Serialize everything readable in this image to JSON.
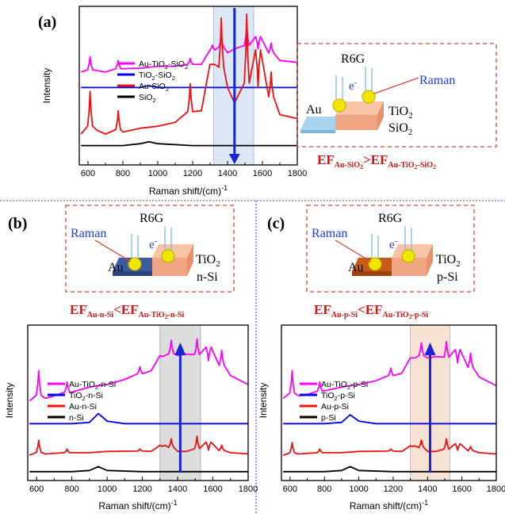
{
  "divider_color": "#3b4cc8",
  "colors": {
    "magenta": "#ff00ff",
    "blue": "#0000ee",
    "red": "#ee1111",
    "black": "#000000",
    "arrow": "#1a23d6",
    "efred": "#d11818",
    "boxred": "#d9433b",
    "diag_blue": "#1f3cdd"
  },
  "panels": [
    {
      "label": "(a)",
      "ylabel": "Intensity",
      "xlabel": "Raman shift/(cm)",
      "xlabel_sup": "-1",
      "xticks": [
        "600",
        "800",
        "1000",
        "1200",
        "1400",
        "1600",
        "1800"
      ],
      "legend": [
        {
          "pre": "Au-TiO",
          "sub": "2",
          "post": "-SiO",
          "sub2": "2",
          "color": "#ff00ff"
        },
        {
          "pre": "TiO",
          "sub": "2",
          "post": "-SiO",
          "sub2": "2",
          "color": "#0000ee"
        },
        {
          "pre": "Au-SiO",
          "sub": "2",
          "post": "",
          "sub2": "",
          "color": "#ee1111"
        },
        {
          "pre": "SiO",
          "sub": "2",
          "post": "",
          "sub2": "",
          "color": "#000000"
        }
      ],
      "diagram": {
        "r6g": "R6G",
        "e": "e",
        "raman": "Raman",
        "au": "Au",
        "oxide": "TiO",
        "oxide_sub": "2",
        "substrate": "SiO",
        "substrate_sub": "2"
      },
      "ef": {
        "left_sub": "Au-SiO",
        "left_sub2": "2",
        "op": ">",
        "right_sub": "Au-TiO",
        "right_sub2": "2",
        "right_tail": "-SiO",
        "right_sub3": "2",
        "ef": "EF"
      }
    },
    {
      "label": "(b)",
      "ylabel": "Intensity",
      "xlabel": "Raman shift/(cm)",
      "xlabel_sup": "-1",
      "xticks": [
        "600",
        "800",
        "1000",
        "1200",
        "1400",
        "1600",
        "1800"
      ],
      "legend": [
        {
          "pre": "Au-TiO",
          "sub": "2",
          "post": "-n-Si",
          "color": "#ff00ff"
        },
        {
          "pre": "TiO",
          "sub": "2",
          "post": "-n-Si",
          "color": "#0000ee"
        },
        {
          "pre": "Au-n-Si",
          "sub": "",
          "post": "",
          "color": "#ee1111"
        },
        {
          "pre": "n-Si",
          "sub": "",
          "post": "",
          "color": "#000000"
        }
      ],
      "diagram": {
        "r6g": "R6G",
        "e": "e",
        "raman": "Raman",
        "au": "Au",
        "oxide": "TiO",
        "oxide_sub": "2",
        "substrate": "n-Si"
      },
      "ef": {
        "ef": "EF",
        "left_sub": "Au-n-Si",
        "op": "<",
        "right_sub": "Au-TiO",
        "right_sub2": "2",
        "right_tail": "-n-Si"
      }
    },
    {
      "label": "(c)",
      "ylabel": "Intensity",
      "xlabel": "Raman shift/(cm)",
      "xlabel_sup": "-1",
      "xticks": [
        "600",
        "800",
        "1000",
        "1200",
        "1400",
        "1600",
        "1800"
      ],
      "legend": [
        {
          "pre": "Au-TiO",
          "sub": "2",
          "post": "-p-Si",
          "color": "#ff00ff"
        },
        {
          "pre": "TiO",
          "sub": "2",
          "post": "-p-Si",
          "color": "#0000ee"
        },
        {
          "pre": "Au-p-Si",
          "sub": "",
          "post": "",
          "color": "#ee1111"
        },
        {
          "pre": "p-Si",
          "sub": "",
          "post": "",
          "color": "#000000"
        }
      ],
      "diagram": {
        "r6g": "R6G",
        "e": "e",
        "raman": "Raman",
        "au": "Au",
        "oxide": "TiO",
        "oxide_sub": "2",
        "substrate": "p-Si"
      },
      "ef": {
        "ef": "EF",
        "left_sub": "Au-p-Si",
        "op": "<",
        "right_sub": "Au-TiO",
        "right_sub2": "2",
        "right_tail": "-p-Si"
      }
    }
  ],
  "chart_data": [
    {
      "type": "line",
      "title": "(a)",
      "xlabel": "Raman shift/(cm)-1",
      "ylabel": "Intensity",
      "xlim": [
        550,
        1800
      ],
      "highlight_band": [
        1320,
        1550
      ],
      "arrow_x": 1440,
      "peaks": [
        612,
        773,
        1186,
        1313,
        1364,
        1510,
        1575,
        1650
      ],
      "series": [
        {
          "name": "Au-TiO2-SiO2",
          "x": [
            560,
            612,
            700,
            773,
            900,
            1000,
            1100,
            1186,
            1250,
            1313,
            1364,
            1400,
            1440,
            1510,
            1575,
            1650,
            1700,
            1800
          ],
          "y": [
            0.38,
            0.46,
            0.38,
            0.44,
            0.4,
            0.41,
            0.41,
            0.45,
            0.42,
            0.52,
            0.56,
            0.48,
            0.5,
            0.62,
            0.5,
            0.53,
            0.44,
            0.43
          ]
        },
        {
          "name": "TiO2-SiO2",
          "x": [
            560,
            700,
            900,
            950,
            1000,
            1200,
            1400,
            1600,
            1800
          ],
          "y": [
            0.3,
            0.3,
            0.3,
            0.31,
            0.3,
            0.3,
            0.3,
            0.3,
            0.3
          ]
        },
        {
          "name": "Au-SiO2",
          "x": [
            560,
            612,
            650,
            700,
            773,
            800,
            900,
            1000,
            1100,
            1186,
            1250,
            1313,
            1364,
            1400,
            1440,
            1510,
            1575,
            1650,
            1700,
            1800
          ],
          "y": [
            0.06,
            0.28,
            0.08,
            0.06,
            0.18,
            0.07,
            0.09,
            0.1,
            0.12,
            0.32,
            0.18,
            0.42,
            0.66,
            0.3,
            0.22,
            0.68,
            0.3,
            0.38,
            0.16,
            0.14
          ]
        },
        {
          "name": "SiO2",
          "x": [
            560,
            800,
            900,
            950,
            1000,
            1200,
            1400,
            1600,
            1800
          ],
          "y": [
            0.0,
            0.0,
            0.01,
            0.02,
            0.01,
            0.0,
            0.0,
            0.0,
            0.0
          ]
        }
      ]
    },
    {
      "type": "line",
      "title": "(b)",
      "xlabel": "Raman shift/(cm)-1",
      "ylabel": "Intensity",
      "xlim": [
        550,
        1800
      ],
      "highlight_band": [
        1300,
        1530
      ],
      "arrow_x": 1415,
      "peaks": [
        612,
        773,
        1186,
        1313,
        1364,
        1510,
        1575,
        1650
      ],
      "series": [
        {
          "name": "Au-TiO2-n-Si",
          "x": [
            560,
            612,
            650,
            700,
            773,
            800,
            900,
            1000,
            1100,
            1186,
            1250,
            1313,
            1364,
            1400,
            1450,
            1510,
            1575,
            1650,
            1700,
            1800
          ],
          "y": [
            0.58,
            0.82,
            0.6,
            0.62,
            0.73,
            0.65,
            0.69,
            0.71,
            0.75,
            0.85,
            0.82,
            0.93,
            1.06,
            0.94,
            0.95,
            1.07,
            0.9,
            0.98,
            0.78,
            0.71
          ]
        },
        {
          "name": "TiO2-n-Si",
          "x": [
            560,
            800,
            900,
            950,
            1000,
            1100,
            1400,
            1600,
            1800
          ],
          "y": [
            0.4,
            0.4,
            0.41,
            0.48,
            0.42,
            0.4,
            0.4,
            0.4,
            0.4
          ]
        },
        {
          "name": "Au-n-Si",
          "x": [
            560,
            612,
            650,
            773,
            900,
            1000,
            1186,
            1250,
            1313,
            1364,
            1400,
            1450,
            1510,
            1575,
            1650,
            1700,
            1800
          ],
          "y": [
            0.15,
            0.27,
            0.16,
            0.2,
            0.17,
            0.18,
            0.2,
            0.18,
            0.22,
            0.28,
            0.18,
            0.18,
            0.3,
            0.19,
            0.23,
            0.17,
            0.16
          ]
        },
        {
          "name": "n-Si",
          "x": [
            560,
            800,
            900,
            950,
            1000,
            1200,
            1400,
            1600,
            1800
          ],
          "y": [
            0.02,
            0.02,
            0.03,
            0.06,
            0.03,
            0.02,
            0.02,
            0.02,
            0.02
          ]
        }
      ]
    },
    {
      "type": "line",
      "title": "(c)",
      "xlabel": "Raman shift/(cm)-1",
      "ylabel": "Intensity",
      "xlim": [
        550,
        1800
      ],
      "highlight_band": [
        1300,
        1530
      ],
      "arrow_x": 1415,
      "peaks": [
        612,
        773,
        1186,
        1313,
        1364,
        1510,
        1575,
        1650
      ],
      "series": [
        {
          "name": "Au-TiO2-p-Si",
          "x": [
            560,
            612,
            650,
            700,
            773,
            800,
            900,
            1000,
            1100,
            1186,
            1250,
            1313,
            1364,
            1400,
            1450,
            1510,
            1575,
            1650,
            1700,
            1800
          ],
          "y": [
            0.6,
            0.82,
            0.62,
            0.63,
            0.73,
            0.66,
            0.69,
            0.71,
            0.74,
            0.84,
            0.8,
            0.92,
            1.04,
            0.92,
            0.93,
            1.05,
            0.88,
            0.96,
            0.77,
            0.7
          ]
        },
        {
          "name": "TiO2-p-Si",
          "x": [
            560,
            800,
            900,
            950,
            1000,
            1100,
            1400,
            1600,
            1800
          ],
          "y": [
            0.4,
            0.4,
            0.41,
            0.47,
            0.42,
            0.4,
            0.4,
            0.4,
            0.4
          ]
        },
        {
          "name": "Au-p-Si",
          "x": [
            560,
            612,
            650,
            773,
            900,
            1000,
            1186,
            1250,
            1313,
            1364,
            1400,
            1450,
            1510,
            1575,
            1650,
            1700,
            1800
          ],
          "y": [
            0.15,
            0.25,
            0.16,
            0.2,
            0.17,
            0.18,
            0.2,
            0.18,
            0.22,
            0.27,
            0.18,
            0.18,
            0.28,
            0.19,
            0.22,
            0.17,
            0.16
          ]
        },
        {
          "name": "p-Si",
          "x": [
            560,
            800,
            900,
            950,
            1000,
            1200,
            1400,
            1600,
            1800
          ],
          "y": [
            0.02,
            0.02,
            0.03,
            0.06,
            0.03,
            0.02,
            0.02,
            0.02,
            0.02
          ]
        }
      ]
    }
  ]
}
